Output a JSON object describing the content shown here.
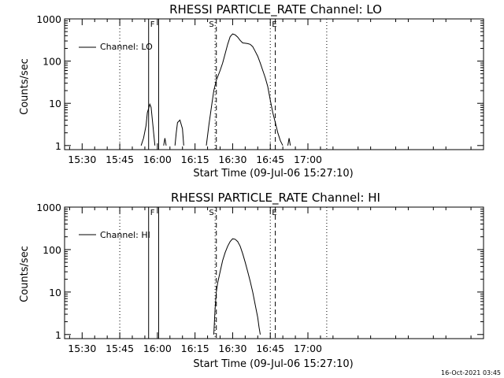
{
  "chart_data": [
    {
      "type": "line",
      "title": "RHESSI PARTICLE_RATE Channel: LO",
      "xlabel": "Start Time (09-Jul-06 15:27:10)",
      "ylabel": "Counts/sec",
      "y_scale": "log",
      "ylim": [
        0.8,
        1000
      ],
      "xlim_minutes_of_day": [
        923,
        1090
      ],
      "xticks": [
        "15:30",
        "15:45",
        "16:00",
        "16:15",
        "16:30",
        "16:45",
        "17:00"
      ],
      "yticks": [
        "1",
        "10",
        "100",
        "1000"
      ],
      "legend": {
        "placement": "top-left",
        "entries": [
          "Channel: LO"
        ]
      },
      "markers": {
        "F": {
          "solid_lines": [
            "15:56:30",
            "16:00:30"
          ]
        },
        "S": {
          "dashed": "16:23:30",
          "dotted": "16:23:00"
        },
        "E": {
          "dashed": "16:47:00",
          "dotted": "16:45:00"
        }
      },
      "dotted_lines": [
        "15:45",
        "17:07:30"
      ],
      "series": [
        {
          "name": "Channel: LO",
          "segments": [
            [
              [
                "15:53:30",
                1
              ],
              [
                "15:54:30",
                1.5
              ],
              [
                "15:55:30",
                3
              ],
              [
                "15:56",
                6
              ],
              [
                "15:57",
                9.5
              ],
              [
                "15:57:30",
                8
              ],
              [
                "15:58",
                4
              ],
              [
                "15:58:30",
                2
              ],
              [
                "15:59",
                1
              ]
            ],
            [
              [
                "16:02:30",
                1
              ],
              [
                "16:03",
                1.5
              ],
              [
                "16:03:30",
                1
              ]
            ],
            [
              [
                "16:07",
                1
              ],
              [
                "16:07:30",
                2
              ],
              [
                "16:08",
                3.5
              ],
              [
                "16:09",
                4
              ],
              [
                "16:10",
                2.5
              ],
              [
                "16:10:30",
                1
              ]
            ],
            [
              [
                "16:19:30",
                1
              ],
              [
                "16:20:30",
                3
              ],
              [
                "16:21:30",
                8
              ],
              [
                "16:22:30",
                20
              ],
              [
                "16:23:30",
                35
              ],
              [
                "16:25",
                60
              ],
              [
                "16:26",
                90
              ],
              [
                "16:27",
                150
              ],
              [
                "16:28",
                250
              ],
              [
                "16:29",
                380
              ],
              [
                "16:30",
                440
              ],
              [
                "16:31",
                420
              ],
              [
                "16:32",
                370
              ],
              [
                "16:33",
                310
              ],
              [
                "16:34",
                270
              ],
              [
                "16:35",
                265
              ],
              [
                "16:36",
                260
              ],
              [
                "16:37",
                250
              ],
              [
                "16:38",
                220
              ],
              [
                "16:39",
                170
              ],
              [
                "16:40",
                130
              ],
              [
                "16:41",
                90
              ],
              [
                "16:42",
                60
              ],
              [
                "16:43",
                40
              ],
              [
                "16:44",
                25
              ],
              [
                "16:45",
                12
              ],
              [
                "16:46",
                6
              ],
              [
                "16:47",
                3.5
              ],
              [
                "16:48",
                2
              ],
              [
                "16:49",
                1.3
              ],
              [
                "16:50",
                1
              ]
            ],
            [
              [
                "16:52",
                1
              ],
              [
                "16:52:30",
                1.5
              ],
              [
                "16:53",
                1
              ]
            ]
          ]
        }
      ]
    },
    {
      "type": "line",
      "title": "RHESSI PARTICLE_RATE Channel: HI",
      "xlabel": "Start Time (09-Jul-06 15:27:10)",
      "ylabel": "Counts/sec",
      "y_scale": "log",
      "ylim": [
        0.8,
        1000
      ],
      "xlim_minutes_of_day": [
        923,
        1090
      ],
      "xticks": [
        "15:30",
        "15:45",
        "16:00",
        "16:15",
        "16:30",
        "16:45",
        "17:00"
      ],
      "yticks": [
        "1",
        "10",
        "100",
        "1000"
      ],
      "legend": {
        "placement": "top-left",
        "entries": [
          "Channel: HI"
        ]
      },
      "markers": {
        "F": {
          "solid_lines": [
            "15:56:30",
            "16:00:30"
          ]
        },
        "S": {
          "dashed": "16:23:30",
          "dotted": "16:23:00"
        },
        "E": {
          "dashed": "16:47:00",
          "dotted": "16:45:00"
        }
      },
      "dotted_lines": [
        "15:45",
        "17:07:30"
      ],
      "series": [
        {
          "name": "Channel: HI",
          "segments": [
            [
              [
                "16:22:30",
                1
              ],
              [
                "16:23",
                4
              ],
              [
                "16:23:30",
                10
              ],
              [
                "16:24",
                16
              ],
              [
                "16:25",
                30
              ],
              [
                "16:26",
                55
              ],
              [
                "16:27",
                85
              ],
              [
                "16:28",
                120
              ],
              [
                "16:29",
                155
              ],
              [
                "16:30",
                180
              ],
              [
                "16:31",
                175
              ],
              [
                "16:32",
                155
              ],
              [
                "16:33",
                120
              ],
              [
                "16:34",
                80
              ],
              [
                "16:35",
                50
              ],
              [
                "16:36",
                30
              ],
              [
                "16:37",
                18
              ],
              [
                "16:38",
                10
              ],
              [
                "16:39",
                5
              ],
              [
                "16:40",
                2.5
              ],
              [
                "16:40:30",
                1.5
              ],
              [
                "16:41",
                1
              ]
            ]
          ]
        }
      ]
    }
  ],
  "timestamp": "16-Oct-2021 03:45"
}
